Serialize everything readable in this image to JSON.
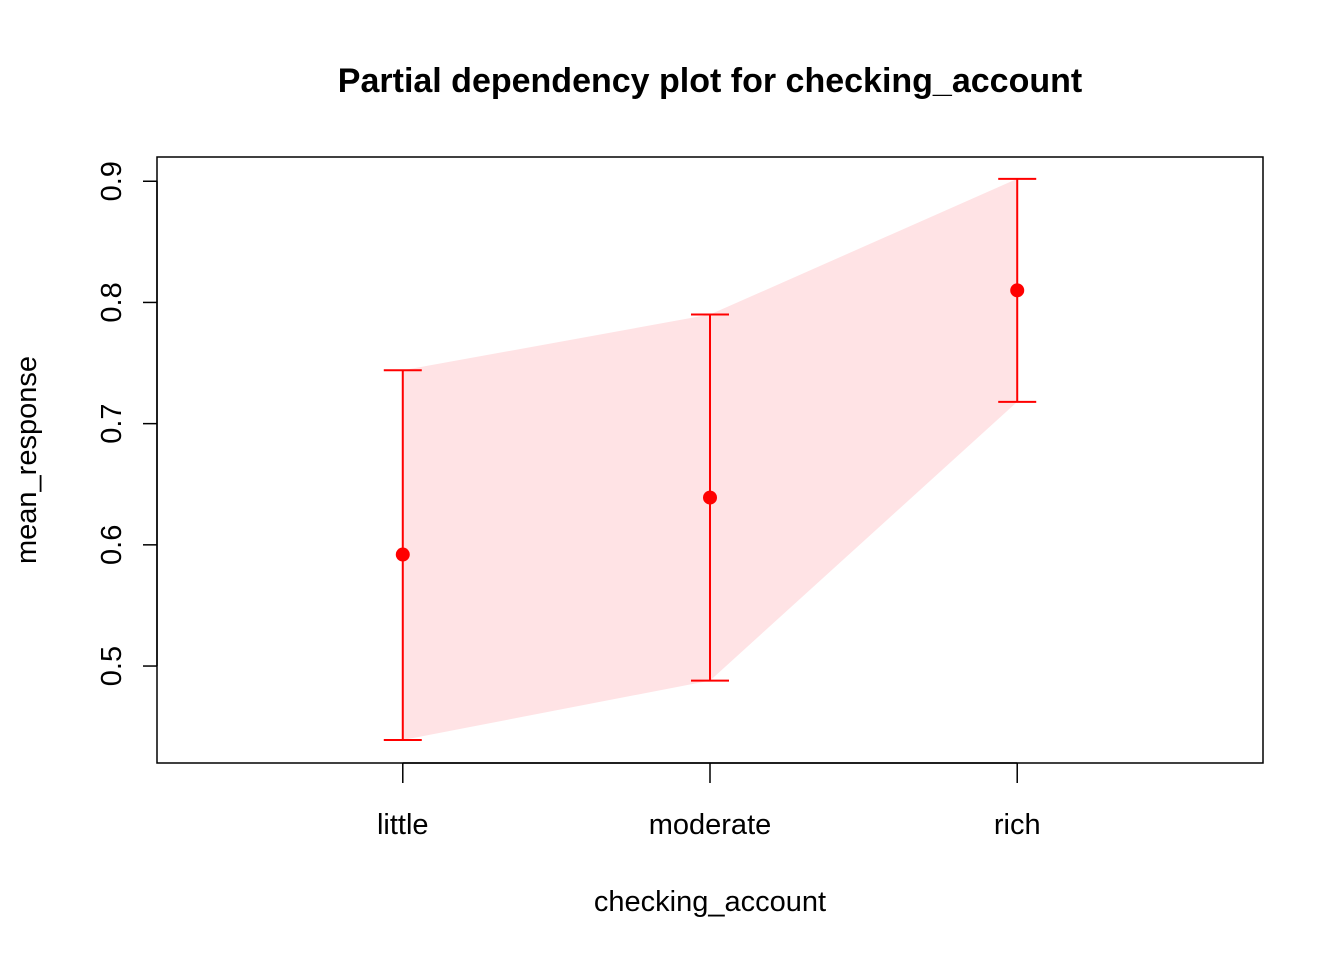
{
  "chart_data": {
    "type": "scatter",
    "title": "Partial dependency plot for checking_account",
    "xlabel": "checking_account",
    "ylabel": "mean_response",
    "categories": [
      "little",
      "moderate",
      "rich"
    ],
    "series": [
      {
        "values": [
          0.592,
          0.639,
          0.81
        ],
        "lower": [
          0.439,
          0.488,
          0.718
        ],
        "upper": [
          0.744,
          0.79,
          0.902
        ]
      }
    ],
    "ylim": [
      0.42,
      0.92
    ],
    "yticks": [
      0.5,
      0.6,
      0.7,
      0.8,
      0.9
    ],
    "grid": false,
    "colors": {
      "point": "#ff0000",
      "errorbar": "#ff0000",
      "band": "#ffe3e5",
      "axis": "#000000"
    }
  }
}
